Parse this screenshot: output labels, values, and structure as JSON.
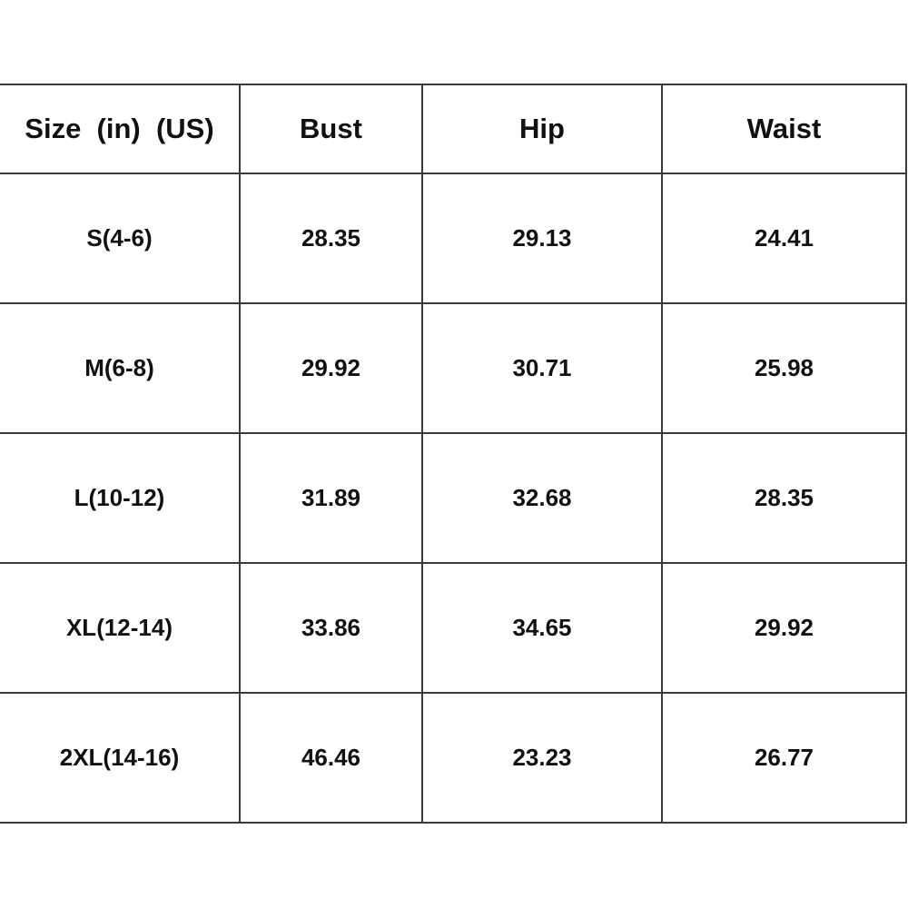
{
  "table": {
    "header": [
      "Size  (in)  (US)",
      "Bust",
      "Hip",
      "Waist"
    ],
    "rows": [
      [
        "S(4-6)",
        "28.35",
        "29.13",
        "24.41"
      ],
      [
        "M(6-8)",
        "29.92",
        "30.71",
        "25.98"
      ],
      [
        "L(10-12)",
        "31.89",
        "32.68",
        "28.35"
      ],
      [
        "XL(12-14)",
        "33.86",
        "34.65",
        "29.92"
      ],
      [
        "2XL(14-16)",
        "46.46",
        "23.23",
        "26.77"
      ]
    ]
  }
}
